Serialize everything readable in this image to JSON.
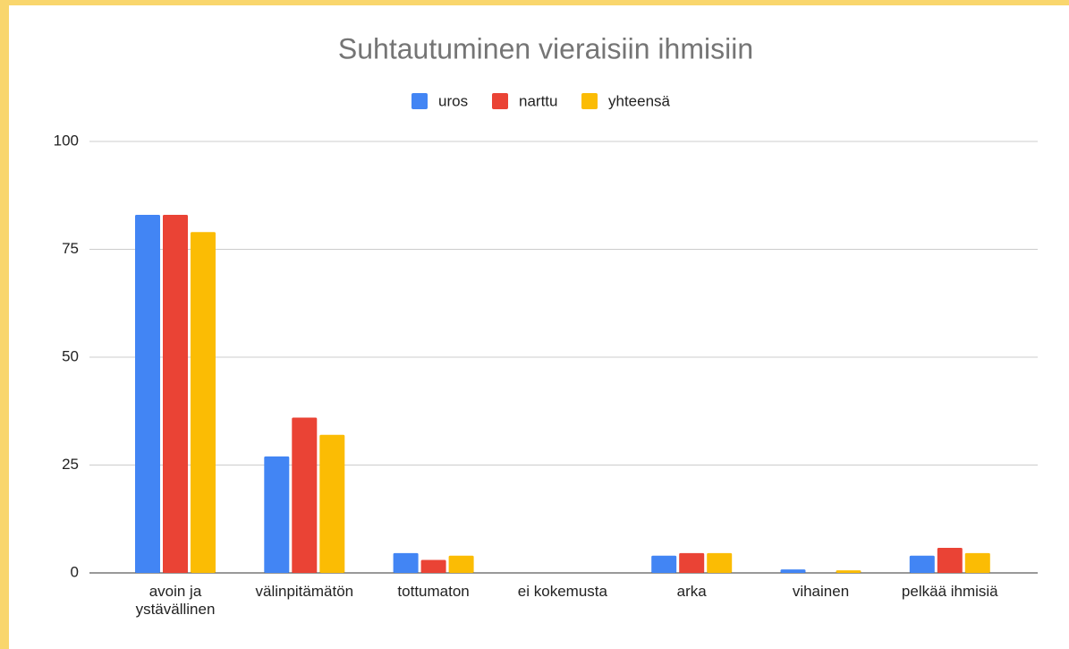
{
  "chart_data": {
    "type": "bar",
    "title": "Suhtautuminen vieraisiin ihmisiin",
    "categories": [
      "avoin ja ystävällinen",
      "välinpitämätön",
      "tottumaton",
      "ei kokemusta",
      "arka",
      "vihainen",
      "pelkää ihmisiä"
    ],
    "series": [
      {
        "name": "uros",
        "color": "#4285f4",
        "values": [
          83,
          27,
          4.6,
          0,
          4,
          0.8,
          4
        ]
      },
      {
        "name": "narttu",
        "color": "#ea4335",
        "values": [
          83,
          36,
          3,
          0,
          4.6,
          0,
          5.8
        ]
      },
      {
        "name": "yhteensä",
        "color": "#fbbc04",
        "values": [
          79,
          32,
          4,
          0,
          4.6,
          0.6,
          4.6
        ]
      }
    ],
    "ylim": [
      0,
      100
    ],
    "yticks": [
      0,
      25,
      50,
      75,
      100
    ],
    "grid": true,
    "legend": "top"
  }
}
